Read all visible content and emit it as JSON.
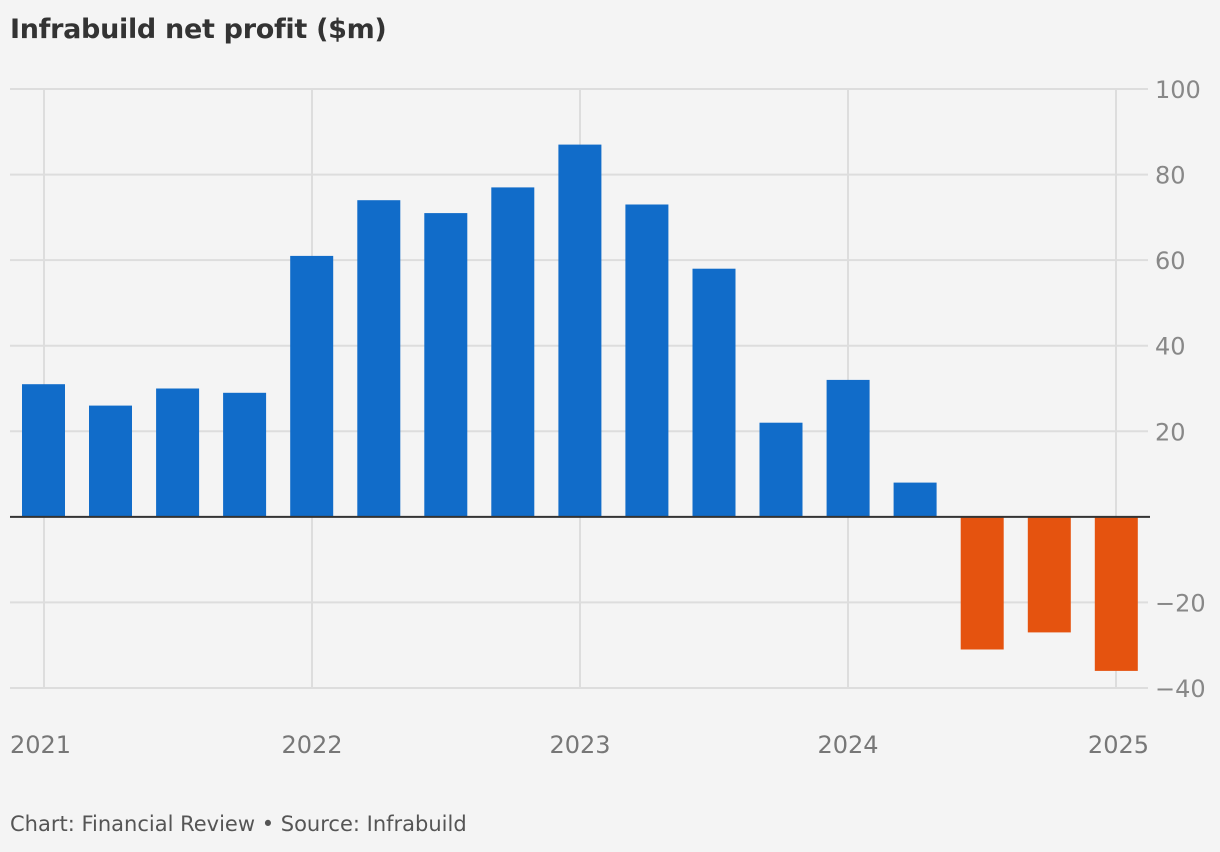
{
  "title": "Infrabuild net profit ($m)",
  "footer": "Chart: Financial Review • Source: Infrabuild",
  "colors": {
    "positive": "#116cc9",
    "negative": "#e5530f",
    "grid": "#dddddd",
    "zero_line": "#333333",
    "tick_text": "#888888",
    "background": "#f4f4f4"
  },
  "chart_data": {
    "type": "bar",
    "title": "Infrabuild net profit ($m)",
    "xlabel": "",
    "ylabel": "",
    "ylim": [
      -40,
      100
    ],
    "y_ticks": [
      {
        "value": 100,
        "label": "100"
      },
      {
        "value": 80,
        "label": "80"
      },
      {
        "value": 60,
        "label": "60"
      },
      {
        "value": 40,
        "label": "40"
      },
      {
        "value": 20,
        "label": "20"
      },
      {
        "value": -20,
        "label": "−20"
      },
      {
        "value": -40,
        "label": "−40"
      }
    ],
    "x_ticks": [
      "2021",
      "2022",
      "2023",
      "2024",
      "2025"
    ],
    "grid": true,
    "values": [
      31,
      26,
      30,
      29,
      61,
      74,
      71,
      77,
      87,
      73,
      58,
      22,
      32,
      8,
      -31,
      -27,
      -36
    ]
  }
}
